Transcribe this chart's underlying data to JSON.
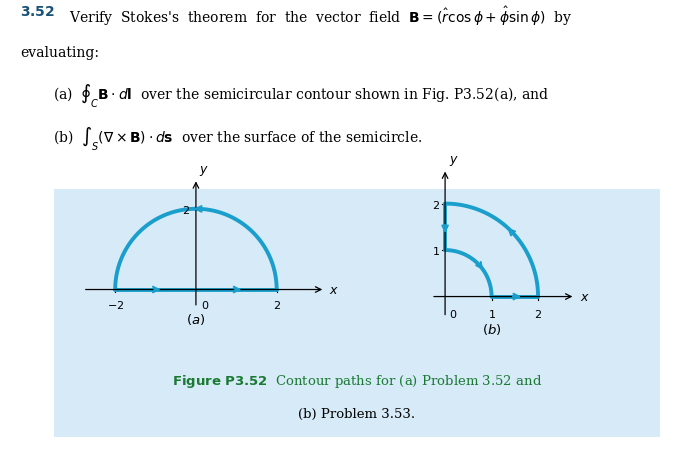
{
  "background_color": "#ffffff",
  "box_color": "#d6eaf8",
  "contour_color": "#1a9fcc",
  "text_color_blue": "#1a5276",
  "text_color_black": "#000000",
  "caption_green": "#1a7a32",
  "fig_width": 6.8,
  "fig_height": 4.52,
  "dpi": 100
}
